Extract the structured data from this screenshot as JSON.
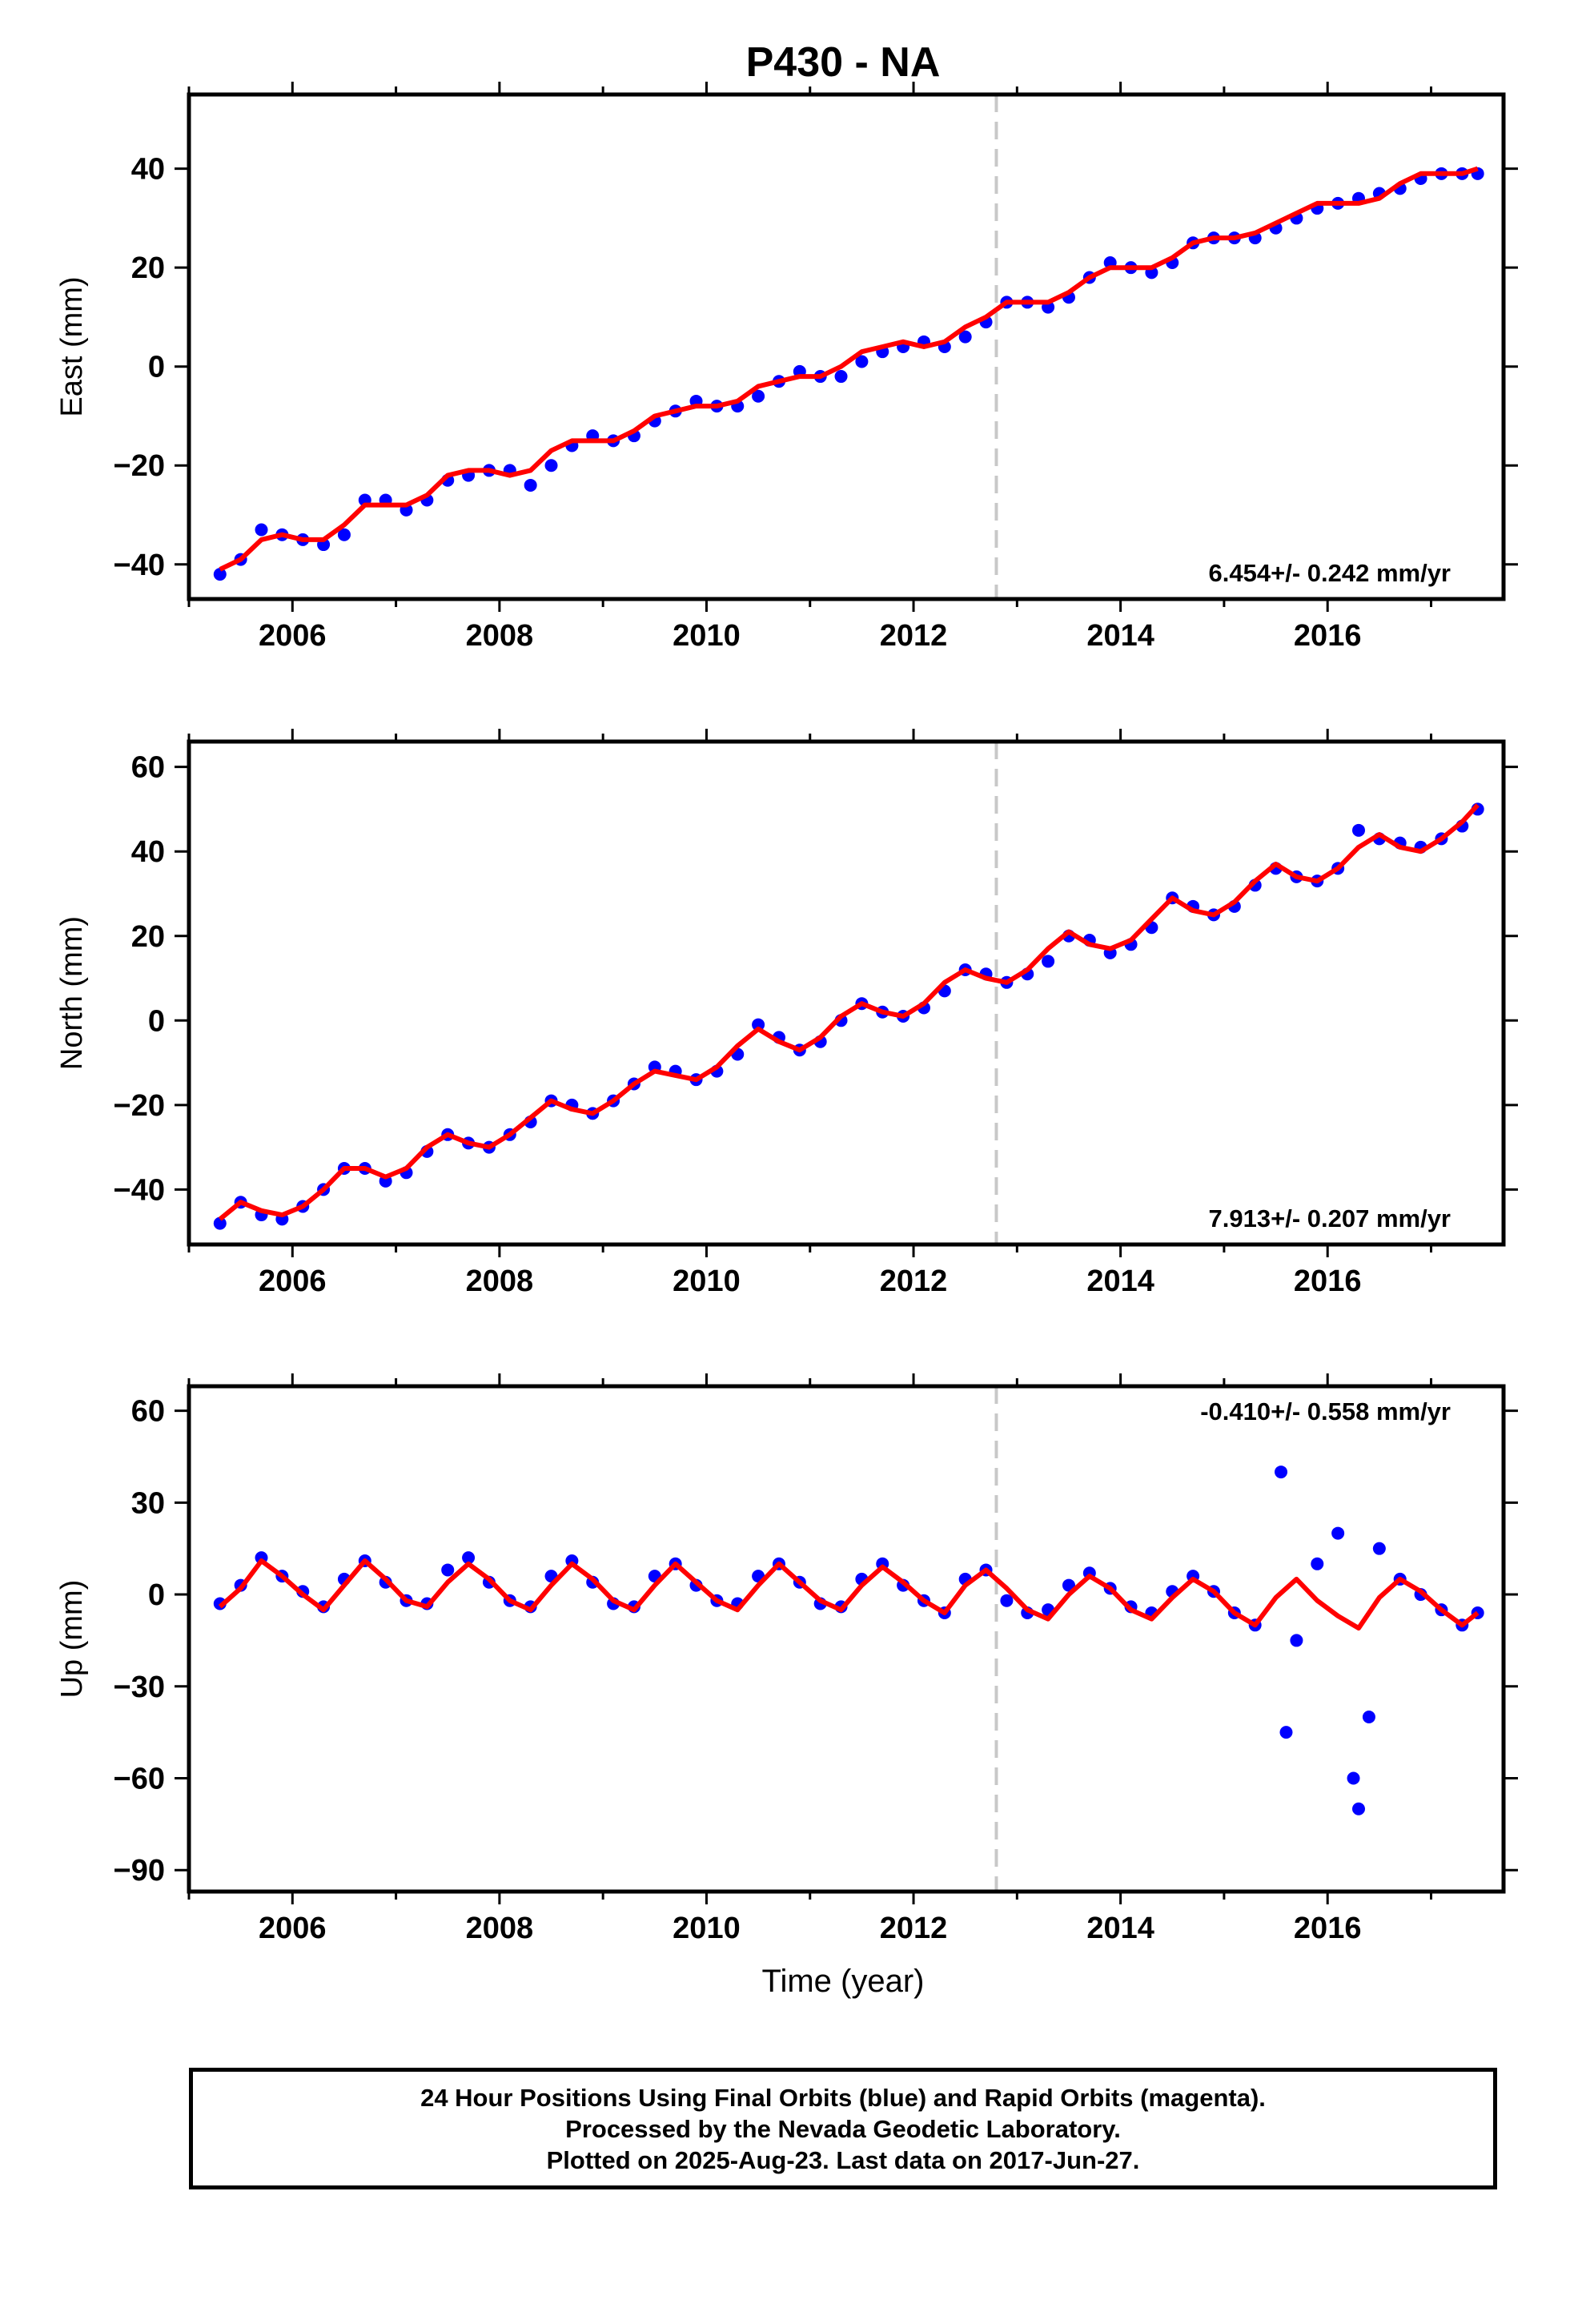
{
  "title": "P430 - NA",
  "colors": {
    "data": "#0000ff",
    "model": "#ff0000",
    "offset": "#c8c8c8",
    "axis": "#000000"
  },
  "xlabel": "Time (year)",
  "footer": {
    "line1": "24 Hour Positions Using Final Orbits (blue) and Rapid Orbits (magenta).",
    "line2": "Processed by the Nevada Geodetic Laboratory.",
    "line3": "Plotted on 2025-Aug-23. Last data on 2017-Jun-27."
  },
  "chart_data": [
    {
      "type": "scatter",
      "component": "east",
      "ylabel": "East (mm)",
      "xlim": [
        2005.0,
        2017.7
      ],
      "ylim": [
        -47,
        55
      ],
      "xticks": [
        2006,
        2008,
        2010,
        2012,
        2014,
        2016
      ],
      "yticks": [
        -40,
        -20,
        0,
        20,
        40
      ],
      "rate_label": "6.454+/- 0.242 mm/yr",
      "offset_epoch": 2012.8,
      "series": [
        {
          "name": "24 Hour Positions (Final Orbits)",
          "style": "points",
          "x": [
            2005.3,
            2005.5,
            2005.7,
            2005.9,
            2006.1,
            2006.3,
            2006.5,
            2006.7,
            2006.9,
            2007.1,
            2007.3,
            2007.5,
            2007.7,
            2007.9,
            2008.1,
            2008.3,
            2008.5,
            2008.7,
            2008.9,
            2009.1,
            2009.3,
            2009.5,
            2009.7,
            2009.9,
            2010.1,
            2010.3,
            2010.5,
            2010.7,
            2010.9,
            2011.1,
            2011.3,
            2011.5,
            2011.7,
            2011.9,
            2012.1,
            2012.3,
            2012.5,
            2012.7,
            2012.9,
            2013.1,
            2013.3,
            2013.5,
            2013.7,
            2013.9,
            2014.1,
            2014.3,
            2014.5,
            2014.7,
            2014.9,
            2015.1,
            2015.3,
            2015.5,
            2015.7,
            2015.9,
            2016.1,
            2016.3,
            2016.5,
            2016.7,
            2016.9,
            2017.1,
            2017.3,
            2017.45
          ],
          "y": [
            -42,
            -39,
            -33,
            -34,
            -35,
            -36,
            -34,
            -27,
            -27,
            -29,
            -27,
            -23,
            -22,
            -21,
            -21,
            -24,
            -20,
            -16,
            -14,
            -15,
            -14,
            -11,
            -9,
            -7,
            -8,
            -8,
            -6,
            -3,
            -1,
            -2,
            -2,
            1,
            3,
            4,
            5,
            4,
            6,
            9,
            13,
            13,
            12,
            14,
            18,
            21,
            20,
            19,
            21,
            25,
            26,
            26,
            26,
            28,
            30,
            32,
            33,
            34,
            35,
            36,
            38,
            39,
            39,
            39
          ]
        },
        {
          "name": "Model fit",
          "style": "line",
          "x": [
            2005.3,
            2005.5,
            2005.7,
            2005.9,
            2006.1,
            2006.3,
            2006.5,
            2006.7,
            2006.9,
            2007.1,
            2007.3,
            2007.5,
            2007.7,
            2007.9,
            2008.1,
            2008.3,
            2008.5,
            2008.7,
            2008.9,
            2009.1,
            2009.3,
            2009.5,
            2009.7,
            2009.9,
            2010.1,
            2010.3,
            2010.5,
            2010.7,
            2010.9,
            2011.1,
            2011.3,
            2011.5,
            2011.7,
            2011.9,
            2012.1,
            2012.3,
            2012.5,
            2012.7,
            2012.9,
            2013.1,
            2013.3,
            2013.5,
            2013.7,
            2013.9,
            2014.1,
            2014.3,
            2014.5,
            2014.7,
            2014.9,
            2015.1,
            2015.3,
            2015.5,
            2015.7,
            2015.9,
            2016.1,
            2016.3,
            2016.5,
            2016.7,
            2016.9,
            2017.1,
            2017.3,
            2017.45
          ],
          "y": [
            -41,
            -39,
            -35,
            -34,
            -35,
            -35,
            -32,
            -28,
            -28,
            -28,
            -26,
            -22,
            -21,
            -21,
            -22,
            -21,
            -17,
            -15,
            -15,
            -15,
            -13,
            -10,
            -9,
            -8,
            -8,
            -7,
            -4,
            -3,
            -2,
            -2,
            0,
            3,
            4,
            5,
            4,
            5,
            8,
            10,
            13,
            13,
            13,
            15,
            18,
            20,
            20,
            20,
            22,
            25,
            26,
            26,
            27,
            29,
            31,
            33,
            33,
            33,
            34,
            37,
            39,
            39,
            39,
            40
          ]
        }
      ]
    },
    {
      "type": "scatter",
      "component": "north",
      "ylabel": "North (mm)",
      "xlim": [
        2005.0,
        2017.7
      ],
      "ylim": [
        -53,
        66
      ],
      "xticks": [
        2006,
        2008,
        2010,
        2012,
        2014,
        2016
      ],
      "yticks": [
        -40,
        -20,
        0,
        20,
        40,
        60
      ],
      "rate_label": "7.913+/- 0.207 mm/yr",
      "offset_epoch": 2012.8,
      "series": [
        {
          "name": "24 Hour Positions (Final Orbits)",
          "style": "points",
          "x": [
            2005.3,
            2005.5,
            2005.7,
            2005.9,
            2006.1,
            2006.3,
            2006.5,
            2006.7,
            2006.9,
            2007.1,
            2007.3,
            2007.5,
            2007.7,
            2007.9,
            2008.1,
            2008.3,
            2008.5,
            2008.7,
            2008.9,
            2009.1,
            2009.3,
            2009.5,
            2009.7,
            2009.9,
            2010.1,
            2010.3,
            2010.5,
            2010.7,
            2010.9,
            2011.1,
            2011.3,
            2011.5,
            2011.7,
            2011.9,
            2012.1,
            2012.3,
            2012.5,
            2012.7,
            2012.9,
            2013.1,
            2013.3,
            2013.5,
            2013.7,
            2013.9,
            2014.1,
            2014.3,
            2014.5,
            2014.7,
            2014.9,
            2015.1,
            2015.3,
            2015.5,
            2015.7,
            2015.9,
            2016.1,
            2016.3,
            2016.5,
            2016.7,
            2016.9,
            2017.1,
            2017.3,
            2017.45
          ],
          "y": [
            -48,
            -43,
            -46,
            -47,
            -44,
            -40,
            -35,
            -35,
            -38,
            -36,
            -31,
            -27,
            -29,
            -30,
            -27,
            -24,
            -19,
            -20,
            -22,
            -19,
            -15,
            -11,
            -12,
            -14,
            -12,
            -8,
            -1,
            -4,
            -7,
            -5,
            0,
            4,
            2,
            1,
            3,
            7,
            12,
            11,
            9,
            11,
            14,
            20,
            19,
            16,
            18,
            22,
            29,
            27,
            25,
            27,
            32,
            36,
            34,
            33,
            36,
            45,
            43,
            42,
            41,
            43,
            46,
            50
          ]
        },
        {
          "name": "Model fit",
          "style": "line",
          "x": [
            2005.3,
            2005.5,
            2005.7,
            2005.9,
            2006.1,
            2006.3,
            2006.5,
            2006.7,
            2006.9,
            2007.1,
            2007.3,
            2007.5,
            2007.7,
            2007.9,
            2008.1,
            2008.3,
            2008.5,
            2008.7,
            2008.9,
            2009.1,
            2009.3,
            2009.5,
            2009.7,
            2009.9,
            2010.1,
            2010.3,
            2010.5,
            2010.7,
            2010.9,
            2011.1,
            2011.3,
            2011.5,
            2011.7,
            2011.9,
            2012.1,
            2012.3,
            2012.5,
            2012.7,
            2012.9,
            2013.1,
            2013.3,
            2013.5,
            2013.7,
            2013.9,
            2014.1,
            2014.3,
            2014.5,
            2014.7,
            2014.9,
            2015.1,
            2015.3,
            2015.5,
            2015.7,
            2015.9,
            2016.1,
            2016.3,
            2016.5,
            2016.7,
            2016.9,
            2017.1,
            2017.3,
            2017.45
          ],
          "y": [
            -47,
            -43,
            -45,
            -46,
            -44,
            -40,
            -35,
            -35,
            -37,
            -35,
            -30,
            -27,
            -29,
            -30,
            -27,
            -23,
            -19,
            -21,
            -22,
            -19,
            -15,
            -12,
            -13,
            -14,
            -11,
            -6,
            -2,
            -5,
            -7,
            -4,
            1,
            4,
            2,
            1,
            4,
            9,
            12,
            10,
            9,
            12,
            17,
            21,
            18,
            17,
            19,
            24,
            29,
            26,
            25,
            28,
            33,
            37,
            34,
            33,
            36,
            41,
            44,
            41,
            40,
            43,
            47,
            51
          ]
        }
      ]
    },
    {
      "type": "scatter",
      "component": "up",
      "ylabel": "Up (mm)",
      "xlim": [
        2005.0,
        2017.7
      ],
      "ylim": [
        -97,
        68
      ],
      "xticks": [
        2006,
        2008,
        2010,
        2012,
        2014,
        2016
      ],
      "yticks": [
        -90,
        -60,
        -30,
        0,
        30,
        60
      ],
      "rate_label": "-0.410+/- 0.558 mm/yr",
      "offset_epoch": 2012.8,
      "series": [
        {
          "name": "24 Hour Positions (Final Orbits)",
          "style": "points",
          "x": [
            2005.3,
            2005.5,
            2005.7,
            2005.9,
            2006.1,
            2006.3,
            2006.5,
            2006.7,
            2006.9,
            2007.1,
            2007.3,
            2007.5,
            2007.7,
            2007.9,
            2008.1,
            2008.3,
            2008.5,
            2008.7,
            2008.9,
            2009.1,
            2009.3,
            2009.5,
            2009.7,
            2009.9,
            2010.1,
            2010.3,
            2010.5,
            2010.7,
            2010.9,
            2011.1,
            2011.3,
            2011.5,
            2011.7,
            2011.9,
            2012.1,
            2012.3,
            2012.5,
            2012.7,
            2012.9,
            2013.1,
            2013.3,
            2013.5,
            2013.7,
            2013.9,
            2014.1,
            2014.3,
            2014.5,
            2014.7,
            2014.9,
            2015.1,
            2015.3,
            2015.55,
            2015.6,
            2015.7,
            2015.9,
            2016.1,
            2016.25,
            2016.3,
            2016.4,
            2016.5,
            2016.7,
            2016.9,
            2017.1,
            2017.3,
            2017.45
          ],
          "y": [
            -3,
            3,
            12,
            6,
            1,
            -4,
            5,
            11,
            4,
            -2,
            -3,
            8,
            12,
            4,
            -2,
            -4,
            6,
            11,
            4,
            -3,
            -4,
            6,
            10,
            3,
            -2,
            -3,
            6,
            10,
            4,
            -3,
            -4,
            5,
            10,
            3,
            -2,
            -6,
            5,
            8,
            -2,
            -6,
            -5,
            3,
            7,
            2,
            -4,
            -6,
            1,
            6,
            1,
            -6,
            -10,
            40,
            -45,
            -15,
            10,
            20,
            -60,
            -70,
            -40,
            15,
            5,
            0,
            -5,
            -10,
            -6
          ]
        },
        {
          "name": "Model fit",
          "style": "line",
          "x": [
            2005.3,
            2005.5,
            2005.7,
            2005.9,
            2006.1,
            2006.3,
            2006.5,
            2006.7,
            2006.9,
            2007.1,
            2007.3,
            2007.5,
            2007.7,
            2007.9,
            2008.1,
            2008.3,
            2008.5,
            2008.7,
            2008.9,
            2009.1,
            2009.3,
            2009.5,
            2009.7,
            2009.9,
            2010.1,
            2010.3,
            2010.5,
            2010.7,
            2010.9,
            2011.1,
            2011.3,
            2011.5,
            2011.7,
            2011.9,
            2012.1,
            2012.3,
            2012.5,
            2012.7,
            2012.9,
            2013.1,
            2013.3,
            2013.5,
            2013.7,
            2013.9,
            2014.1,
            2014.3,
            2014.5,
            2014.7,
            2014.9,
            2015.1,
            2015.3,
            2015.5,
            2015.7,
            2015.9,
            2016.1,
            2016.3,
            2016.5,
            2016.7,
            2016.9,
            2017.1,
            2017.3,
            2017.45
          ],
          "y": [
            -4,
            2,
            11,
            6,
            0,
            -5,
            3,
            11,
            5,
            -2,
            -4,
            4,
            10,
            5,
            -2,
            -5,
            3,
            10,
            5,
            -2,
            -5,
            3,
            10,
            4,
            -2,
            -5,
            3,
            10,
            4,
            -2,
            -5,
            3,
            9,
            4,
            -2,
            -6,
            3,
            8,
            2,
            -5,
            -8,
            0,
            6,
            2,
            -5,
            -8,
            -1,
            5,
            1,
            -6,
            -10,
            -1,
            5,
            -2,
            -7,
            -11,
            -1,
            5,
            1,
            -5,
            -10,
            -6
          ]
        }
      ]
    }
  ]
}
